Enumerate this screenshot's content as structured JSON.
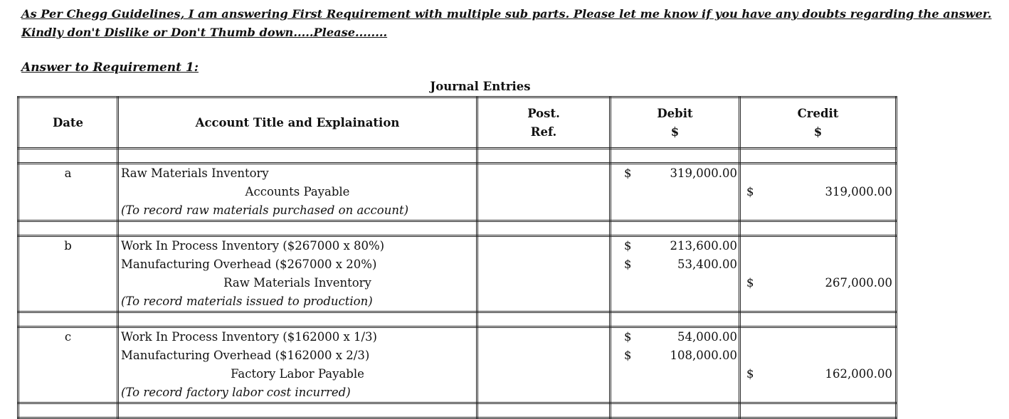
{
  "intro": "As Per Chegg Guidelines, I am answering First Requirement with multiple sub parts. Please let me know if you have any doubts regarding the answer. Kindly don't Dislike or Don't Thumb down.....Please........",
  "requirement_heading": "Answer to Requirement 1:",
  "table_title": "Journal Entries",
  "headers": {
    "date": "Date",
    "account": "Account Title and Explaination",
    "post1": "Post.",
    "post2": "Ref.",
    "debit": "Debit",
    "credit": "Credit",
    "currency": "$"
  },
  "entries": [
    {
      "date": "a",
      "lines": [
        {
          "account": "Raw Materials Inventory",
          "debit": "319,000.00"
        },
        {
          "account": "Accounts Payable",
          "credit": "319,000.00",
          "indent": true
        },
        {
          "account": "(To record raw materials purchased on account)",
          "explanation": true
        }
      ]
    },
    {
      "date": "b",
      "lines": [
        {
          "account": "Work In Process Inventory ($267000 x 80%)",
          "debit": "213,600.00"
        },
        {
          "account": "Manufacturing Overhead ($267000 x 20%)",
          "debit": "53,400.00"
        },
        {
          "account": "Raw Materials Inventory",
          "credit": "267,000.00",
          "indent": true
        },
        {
          "account": "(To record materials issued to production)",
          "explanation": true
        }
      ]
    },
    {
      "date": "c",
      "lines": [
        {
          "account": "Work In Process Inventory ($162000 x 1/3)",
          "debit": "54,000.00"
        },
        {
          "account": "Manufacturing Overhead ($162000 x 2/3)",
          "debit": "108,000.00"
        },
        {
          "account": "Factory Labor Payable",
          "credit": "162,000.00",
          "indent": true
        },
        {
          "account": "(To record factory labor cost incurred)",
          "explanation": true
        }
      ]
    }
  ]
}
